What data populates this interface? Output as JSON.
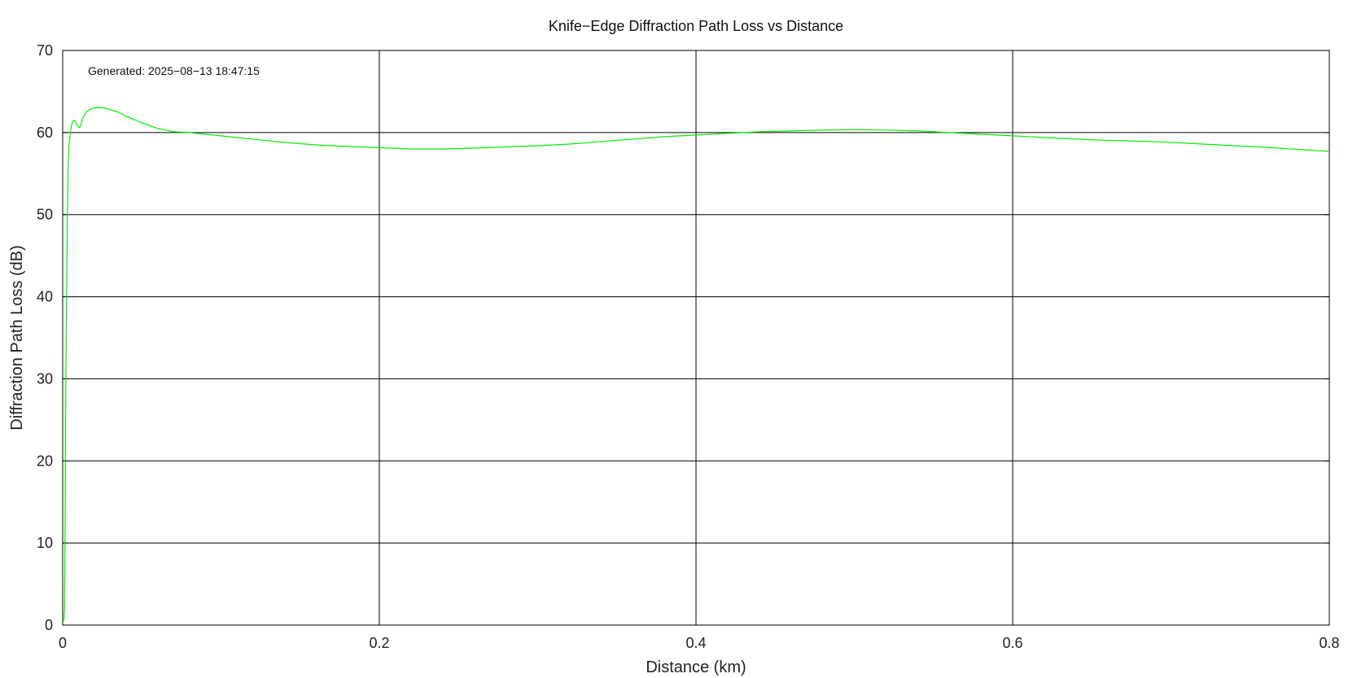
{
  "chart_data": {
    "type": "line",
    "title": "Knife−Edge Diffraction Path Loss vs Distance",
    "xlabel": "Distance (km)",
    "ylabel": "Diffraction Path Loss (dB)",
    "xlim": [
      0,
      0.8
    ],
    "ylim": [
      0,
      70
    ],
    "xticks": [
      0,
      0.2,
      0.4,
      0.6,
      0.8
    ],
    "xtick_labels": [
      "0",
      "0.2",
      "0.4",
      "0.6",
      "0.8"
    ],
    "yticks": [
      0,
      10,
      20,
      30,
      40,
      50,
      60,
      70
    ],
    "ytick_labels": [
      "0",
      "10",
      "20",
      "30",
      "40",
      "50",
      "60",
      "70"
    ],
    "grid": true,
    "annotation": "Generated: 2025−08−13 18:47:15",
    "colors": {
      "line": "#00ee00",
      "grid": "#000000",
      "axes": "#000000"
    },
    "series": [
      {
        "x": [
          0.0008,
          0.0012,
          0.0016,
          0.002,
          0.0025,
          0.003,
          0.0035,
          0.004,
          0.005,
          0.006,
          0.007,
          0.008,
          0.009,
          0.01,
          0.011,
          0.012,
          0.013,
          0.015,
          0.017,
          0.02,
          0.023,
          0.026,
          0.03,
          0.035,
          0.04,
          0.05,
          0.06,
          0.07,
          0.08,
          0.09,
          0.1,
          0.12,
          0.14,
          0.16,
          0.18,
          0.2,
          0.22,
          0.24,
          0.26,
          0.28,
          0.3,
          0.32,
          0.34,
          0.36,
          0.38,
          0.4,
          0.42,
          0.44,
          0.46,
          0.48,
          0.5,
          0.52,
          0.54,
          0.56,
          0.58,
          0.6,
          0.62,
          0.64,
          0.66,
          0.68,
          0.7,
          0.72,
          0.74,
          0.76,
          0.78,
          0.8
        ],
        "y": [
          0.5,
          2.0,
          15.0,
          30.0,
          40.0,
          50.0,
          56.0,
          58.5,
          60.2,
          61.2,
          61.5,
          61.4,
          61.0,
          60.6,
          60.7,
          61.3,
          61.9,
          62.5,
          62.8,
          63.0,
          63.05,
          63.0,
          62.8,
          62.5,
          62.0,
          61.2,
          60.5,
          60.1,
          60.0,
          59.8,
          59.6,
          59.2,
          58.8,
          58.5,
          58.3,
          58.15,
          58.0,
          58.0,
          58.1,
          58.25,
          58.4,
          58.6,
          58.9,
          59.2,
          59.5,
          59.7,
          59.9,
          60.1,
          60.2,
          60.3,
          60.35,
          60.3,
          60.2,
          60.0,
          59.8,
          59.6,
          59.4,
          59.2,
          59.05,
          58.95,
          58.8,
          58.6,
          58.4,
          58.2,
          57.95,
          57.7
        ]
      }
    ]
  }
}
